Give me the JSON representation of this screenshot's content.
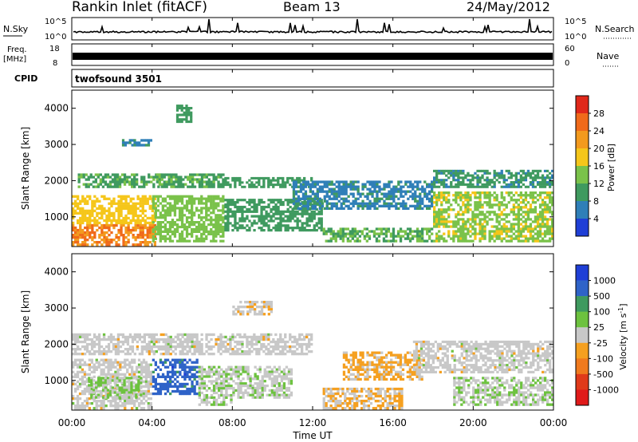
{
  "header": {
    "title": "Rankin Inlet (fitACF)",
    "beam": "Beam 13",
    "date": "24/May/2012"
  },
  "status_panels": {
    "nsky_label": "N.Sky",
    "nsky_ticks": [
      "10^5",
      "10^0"
    ],
    "nsearch_label": "N.Search",
    "nsearch_ticks": [
      "10^5",
      "10^0"
    ],
    "freq_label": "Freq.",
    "freq_unit": "[MHz]",
    "freq_ticks": [
      "18",
      "8"
    ],
    "nave_label": "Nave",
    "nave_ticks": [
      "60",
      "0"
    ],
    "cpid_label": "CPID",
    "cpid_value": "twofsound 3501"
  },
  "x_axis": {
    "label": "Time UT",
    "ticks": [
      "00:00",
      "04:00",
      "08:00",
      "12:00",
      "16:00",
      "20:00",
      "00:00"
    ]
  },
  "colors": {
    "power": [
      "#1f3fd6",
      "#2f7fb8",
      "#3f9a5f",
      "#7ac24a",
      "#f5c61a",
      "#f39a1e",
      "#f06a1a",
      "#e0281a"
    ],
    "velocity": [
      "#1f3fd6",
      "#2f63c8",
      "#3f9a5f",
      "#6dc23f",
      "#c8c8c8",
      "#f5a020",
      "#f07a1e",
      "#e03a1a",
      "#e01a1a"
    ]
  },
  "chart_data": [
    {
      "type": "heatmap",
      "title": "",
      "xlabel": "",
      "ylabel": "Slant Range [km]",
      "y_ticks": [
        "1000",
        "2000",
        "3000",
        "4000"
      ],
      "colorbar_label": "Power [dB]",
      "colorbar_ticks": [
        "4",
        "8",
        "12",
        "16",
        "20",
        "24",
        "28"
      ],
      "xlim": [
        0,
        24
      ],
      "ylim": [
        180,
        4500
      ],
      "clim": [
        0,
        32
      ],
      "regions": [
        {
          "x": [
            0,
            4.2
          ],
          "y": [
            200,
            800
          ],
          "value": 24
        },
        {
          "x": [
            0,
            4.2
          ],
          "y": [
            800,
            1600
          ],
          "value": 18
        },
        {
          "x": [
            0.3,
            4.5
          ],
          "y": [
            1800,
            2200
          ],
          "value": 11
        },
        {
          "x": [
            4,
            7.6
          ],
          "y": [
            300,
            1600
          ],
          "value": 14
        },
        {
          "x": [
            4.2,
            7.6
          ],
          "y": [
            1800,
            2200
          ],
          "value": 11
        },
        {
          "x": [
            7.6,
            12.5
          ],
          "y": [
            600,
            1500
          ],
          "value": 10
        },
        {
          "x": [
            7.6,
            12
          ],
          "y": [
            1800,
            2100
          ],
          "value": 10
        },
        {
          "x": [
            12.5,
            18
          ],
          "y": [
            300,
            700
          ],
          "value": 12
        },
        {
          "x": [
            11,
            18
          ],
          "y": [
            1200,
            2000
          ],
          "value": 7
        },
        {
          "x": [
            18,
            24
          ],
          "y": [
            300,
            1700
          ],
          "value": 15
        },
        {
          "x": [
            18,
            24
          ],
          "y": [
            1800,
            2300
          ],
          "value": 9
        },
        {
          "x": [
            2.5,
            4
          ],
          "y": [
            2950,
            3150
          ],
          "value": 7
        },
        {
          "x": [
            5.2,
            6
          ],
          "y": [
            3600,
            4100
          ],
          "value": 10
        }
      ]
    },
    {
      "type": "heatmap",
      "title": "",
      "xlabel": "Time UT",
      "ylabel": "Slant Range [km]",
      "y_ticks": [
        "1000",
        "2000",
        "3000",
        "4000"
      ],
      "colorbar_label": "Velocity [m s^-1]",
      "colorbar_ticks": [
        "1000",
        "500",
        "100",
        "25",
        "-25",
        "-100",
        "-500",
        "-1000"
      ],
      "xlim": [
        0,
        24
      ],
      "ylim": [
        180,
        4500
      ],
      "clim": [
        -1200,
        1200
      ],
      "regions": [
        {
          "x": [
            0,
            4
          ],
          "y": [
            200,
            1600
          ],
          "value": 0
        },
        {
          "x": [
            0.8,
            3.5
          ],
          "y": [
            500,
            1100
          ],
          "value": 150
        },
        {
          "x": [
            0,
            12
          ],
          "y": [
            1700,
            2300
          ],
          "value": 0
        },
        {
          "x": [
            4,
            6.3
          ],
          "y": [
            600,
            1600
          ],
          "value": 800
        },
        {
          "x": [
            6.3,
            8
          ],
          "y": [
            300,
            1400
          ],
          "value": 100
        },
        {
          "x": [
            8,
            11
          ],
          "y": [
            500,
            1400
          ],
          "value": 60
        },
        {
          "x": [
            12.5,
            16.5
          ],
          "y": [
            200,
            800
          ],
          "value": -150
        },
        {
          "x": [
            13.5,
            17.5
          ],
          "y": [
            1000,
            1800
          ],
          "value": -200
        },
        {
          "x": [
            17,
            24
          ],
          "y": [
            1200,
            2100
          ],
          "value": 0
        },
        {
          "x": [
            19,
            24
          ],
          "y": [
            300,
            1100
          ],
          "value": 80
        },
        {
          "x": [
            8,
            10
          ],
          "y": [
            2800,
            3200
          ],
          "value": -50
        }
      ]
    }
  ]
}
